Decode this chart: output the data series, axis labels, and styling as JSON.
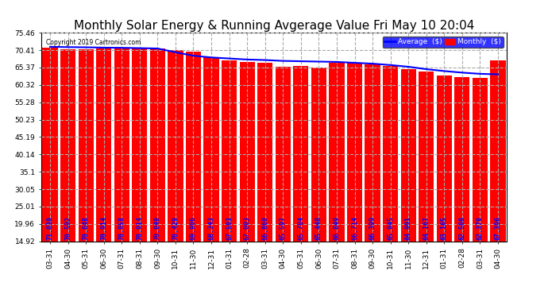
{
  "title": "Monthly Solar Energy & Running Avgerage Value Fri May 10 20:04",
  "copyright": "Copyright 2019 Cartronics.com",
  "categories": [
    "03-31",
    "04-30",
    "05-31",
    "06-30",
    "07-31",
    "08-31",
    "09-30",
    "10-31",
    "11-30",
    "12-31",
    "01-31",
    "02-28",
    "03-31",
    "04-30",
    "05-31",
    "06-30",
    "07-31",
    "08-31",
    "09-30",
    "10-31",
    "11-30",
    "12-31",
    "01-31",
    "02-28",
    "03-31",
    "04-30"
  ],
  "bar_values": [
    71.03,
    70.592,
    70.648,
    70.914,
    70.958,
    70.914,
    70.848,
    70.429,
    69.906,
    68.343,
    67.503,
    67.003,
    66.86,
    65.597,
    65.784,
    65.448,
    66.849,
    66.714,
    66.399,
    65.945,
    64.991,
    64.167,
    63.165,
    62.508,
    62.37,
    67.396
  ],
  "bar_labels": [
    "71.030",
    "70.592",
    "70.648",
    "70.914",
    "70.958",
    "70.914",
    "70.848",
    "70.429",
    "69.906",
    "68.343",
    "67.503",
    "67.003",
    "66.860",
    "65.597",
    "65.784",
    "65.448",
    "66.849",
    "66.714",
    "66.399",
    "65.945",
    "64.991",
    "64.167",
    "63.165",
    "62.508",
    "62.370",
    "67.396"
  ],
  "avg_values": [
    71.4,
    71.3,
    71.25,
    71.15,
    71.1,
    71.0,
    70.9,
    69.8,
    68.8,
    68.3,
    68.0,
    67.7,
    67.55,
    67.3,
    67.2,
    67.1,
    67.0,
    66.75,
    66.5,
    66.1,
    65.6,
    64.9,
    64.35,
    63.9,
    63.55,
    63.4
  ],
  "bar_color": "#ff0000",
  "avg_color": "#0000ff",
  "background_color": "#ffffff",
  "plot_bg_color": "#ffffff",
  "yticks": [
    14.92,
    19.96,
    25.01,
    30.05,
    35.1,
    40.14,
    45.19,
    50.23,
    55.28,
    60.32,
    65.37,
    70.41,
    75.46
  ],
  "ylim_min": 14.92,
  "ylim_max": 75.46,
  "grid_color": "#aaaaaa",
  "title_fontsize": 11,
  "label_fontsize": 6.0,
  "tick_fontsize": 6.5,
  "bar_label_color": "#0000ff",
  "legend_avg_label": "Average  ($)",
  "legend_monthly_label": "Monthly  ($)"
}
